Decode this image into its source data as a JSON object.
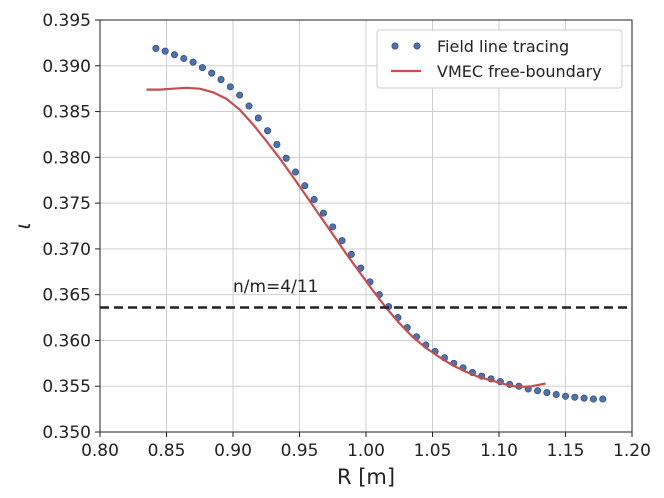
{
  "chart_data": {
    "type": "line",
    "xlabel": "R [m]",
    "ylabel": "ι",
    "xlim": [
      0.8,
      1.2
    ],
    "ylim": [
      0.35,
      0.395
    ],
    "x_ticks": [
      0.8,
      0.85,
      0.9,
      0.95,
      1.0,
      1.05,
      1.1,
      1.15,
      1.2
    ],
    "x_tick_labels": [
      "0.80",
      "0.85",
      "0.90",
      "0.95",
      "1.00",
      "1.05",
      "1.10",
      "1.15",
      "1.20"
    ],
    "y_ticks": [
      0.35,
      0.355,
      0.36,
      0.365,
      0.37,
      0.375,
      0.38,
      0.385,
      0.39,
      0.395
    ],
    "y_tick_labels": [
      "0.350",
      "0.355",
      "0.360",
      "0.365",
      "0.370",
      "0.375",
      "0.380",
      "0.385",
      "0.390",
      "0.395"
    ],
    "grid": true,
    "legend_position": "top-right",
    "series": [
      {
        "name": "Field line tracing",
        "kind": "scatter",
        "color": "#4c72b0",
        "x": [
          0.842,
          0.849,
          0.856,
          0.863,
          0.87,
          0.877,
          0.884,
          0.891,
          0.898,
          0.905,
          0.912,
          0.919,
          0.926,
          0.933,
          0.94,
          0.947,
          0.954,
          0.961,
          0.968,
          0.975,
          0.982,
          0.989,
          0.996,
          1.003,
          1.01,
          1.017,
          1.024,
          1.031,
          1.038,
          1.045,
          1.052,
          1.059,
          1.066,
          1.073,
          1.08,
          1.087,
          1.094,
          1.101,
          1.108,
          1.115,
          1.122,
          1.129,
          1.136,
          1.143,
          1.15,
          1.157,
          1.164,
          1.171,
          1.178
        ],
        "y": [
          0.3919,
          0.3916,
          0.3912,
          0.3908,
          0.3904,
          0.3898,
          0.3892,
          0.3885,
          0.3877,
          0.3868,
          0.3856,
          0.3843,
          0.3829,
          0.3814,
          0.3799,
          0.3784,
          0.3769,
          0.3754,
          0.3739,
          0.3724,
          0.3709,
          0.3694,
          0.3679,
          0.3664,
          0.365,
          0.3637,
          0.3625,
          0.3614,
          0.3604,
          0.3595,
          0.3588,
          0.3581,
          0.3575,
          0.357,
          0.3565,
          0.3561,
          0.3558,
          0.3555,
          0.3552,
          0.355,
          0.3547,
          0.3545,
          0.3543,
          0.3541,
          0.3539,
          0.3538,
          0.3537,
          0.3536,
          0.3536
        ]
      },
      {
        "name": "VMEC free-boundary",
        "kind": "line",
        "color": "#c44e52",
        "x": [
          0.835,
          0.845,
          0.855,
          0.865,
          0.875,
          0.885,
          0.895,
          0.905,
          0.915,
          0.925,
          0.935,
          0.945,
          0.955,
          0.965,
          0.975,
          0.985,
          0.995,
          1.005,
          1.015,
          1.025,
          1.035,
          1.045,
          1.055,
          1.065,
          1.075,
          1.085,
          1.095,
          1.105,
          1.115,
          1.125,
          1.135
        ],
        "y": [
          0.3874,
          0.3874,
          0.3875,
          0.3876,
          0.3875,
          0.3871,
          0.3864,
          0.3852,
          0.3836,
          0.3818,
          0.3799,
          0.3779,
          0.3758,
          0.3737,
          0.3716,
          0.3695,
          0.3675,
          0.3655,
          0.3636,
          0.3619,
          0.3604,
          0.3592,
          0.3582,
          0.3573,
          0.3566,
          0.356,
          0.3556,
          0.3552,
          0.3549,
          0.355,
          0.3553
        ]
      },
      {
        "name": "",
        "kind": "hline",
        "style": "dashed",
        "color": "#222222",
        "y": 0.3636
      }
    ],
    "annotations": [
      {
        "text": "n/m=4/11",
        "x": 0.9,
        "y": 0.3651
      }
    ]
  }
}
